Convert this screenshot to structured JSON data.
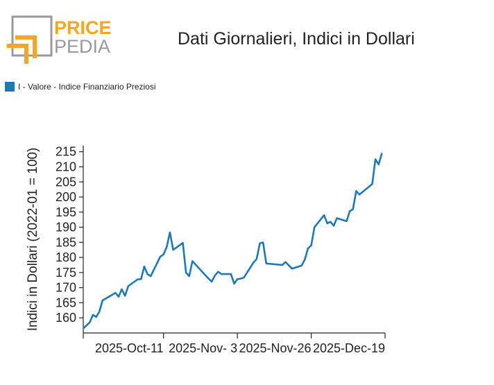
{
  "header": {
    "title": "Dati Giornalieri, Indici in Dollari",
    "logo": {
      "word1": "PRICE",
      "word2": "PEDIA",
      "accent_color": "#f5a623",
      "gray_color": "#9a9a9a"
    }
  },
  "chart_data": {
    "type": "line",
    "ylabel": "Indici in Dollari (2022-01 = 100)",
    "xlabel": "",
    "ylim": [
      155,
      217
    ],
    "yticks": [
      160,
      165,
      170,
      175,
      180,
      185,
      190,
      195,
      200,
      205,
      210,
      215
    ],
    "xrange": [
      "2025-09-16",
      "2025-12-19"
    ],
    "xticks": [
      {
        "date": "2025-10-11",
        "label": "2025-Oct-11"
      },
      {
        "date": "2025-11-03",
        "label": "2025-Nov- 3"
      },
      {
        "date": "2025-11-26",
        "label": "2025-Nov-26"
      },
      {
        "date": "2025-12-19",
        "label": "2025-Dec-19"
      }
    ],
    "legend": {
      "placement": "top-left"
    },
    "grid": false,
    "series": [
      {
        "name": "I - Valore - Indice Finanziario Preziosi",
        "color": "#1f77b4",
        "points": [
          [
            "2025-09-16",
            156.5
          ],
          [
            "2025-09-17",
            157.5
          ],
          [
            "2025-09-18",
            158.5
          ],
          [
            "2025-09-19",
            161.0
          ],
          [
            "2025-09-20",
            160.3
          ],
          [
            "2025-09-21",
            162.0
          ],
          [
            "2025-09-22",
            165.8
          ],
          [
            "2025-09-24",
            167.0
          ],
          [
            "2025-09-26",
            168.3
          ],
          [
            "2025-09-27",
            167.0
          ],
          [
            "2025-09-28",
            169.5
          ],
          [
            "2025-09-29",
            167.3
          ],
          [
            "2025-09-30",
            170.5
          ],
          [
            "2025-10-03",
            172.8
          ],
          [
            "2025-10-04",
            172.8
          ],
          [
            "2025-10-05",
            177.0
          ],
          [
            "2025-10-06",
            174.5
          ],
          [
            "2025-10-07",
            173.8
          ],
          [
            "2025-10-10",
            180.3
          ],
          [
            "2025-10-11",
            181.0
          ],
          [
            "2025-10-12",
            183.5
          ],
          [
            "2025-10-13",
            188.3
          ],
          [
            "2025-10-14",
            182.5
          ],
          [
            "2025-10-17",
            184.8
          ],
          [
            "2025-10-18",
            175.0
          ],
          [
            "2025-10-19",
            173.8
          ],
          [
            "2025-10-20",
            178.8
          ],
          [
            "2025-10-25",
            173.0
          ],
          [
            "2025-10-26",
            172.0
          ],
          [
            "2025-10-27",
            174.0
          ],
          [
            "2025-10-28",
            175.3
          ],
          [
            "2025-10-29",
            174.5
          ],
          [
            "2025-11-01",
            174.5
          ],
          [
            "2025-11-02",
            171.3
          ],
          [
            "2025-11-03",
            172.8
          ],
          [
            "2025-11-04",
            173.0
          ],
          [
            "2025-11-05",
            173.3
          ],
          [
            "2025-11-08",
            178.3
          ],
          [
            "2025-11-09",
            179.5
          ],
          [
            "2025-11-10",
            184.7
          ],
          [
            "2025-11-11",
            185.0
          ],
          [
            "2025-11-12",
            178.0
          ],
          [
            "2025-11-17",
            177.5
          ],
          [
            "2025-11-18",
            178.5
          ],
          [
            "2025-11-20",
            176.3
          ],
          [
            "2025-11-23",
            177.3
          ],
          [
            "2025-11-24",
            179.3
          ],
          [
            "2025-11-25",
            183.0
          ],
          [
            "2025-11-26",
            184.0
          ],
          [
            "2025-11-27",
            190.0
          ],
          [
            "2025-11-30",
            194.0
          ],
          [
            "2025-12-01",
            191.3
          ],
          [
            "2025-12-02",
            191.8
          ],
          [
            "2025-12-03",
            190.5
          ],
          [
            "2025-12-04",
            193.0
          ],
          [
            "2025-12-07",
            192.0
          ],
          [
            "2025-12-08",
            195.3
          ],
          [
            "2025-12-09",
            196.0
          ],
          [
            "2025-12-10",
            202.0
          ],
          [
            "2025-12-11",
            200.8
          ],
          [
            "2025-12-15",
            204.3
          ],
          [
            "2025-12-16",
            212.5
          ],
          [
            "2025-12-17",
            210.8
          ],
          [
            "2025-12-18",
            214.5
          ]
        ]
      }
    ]
  }
}
